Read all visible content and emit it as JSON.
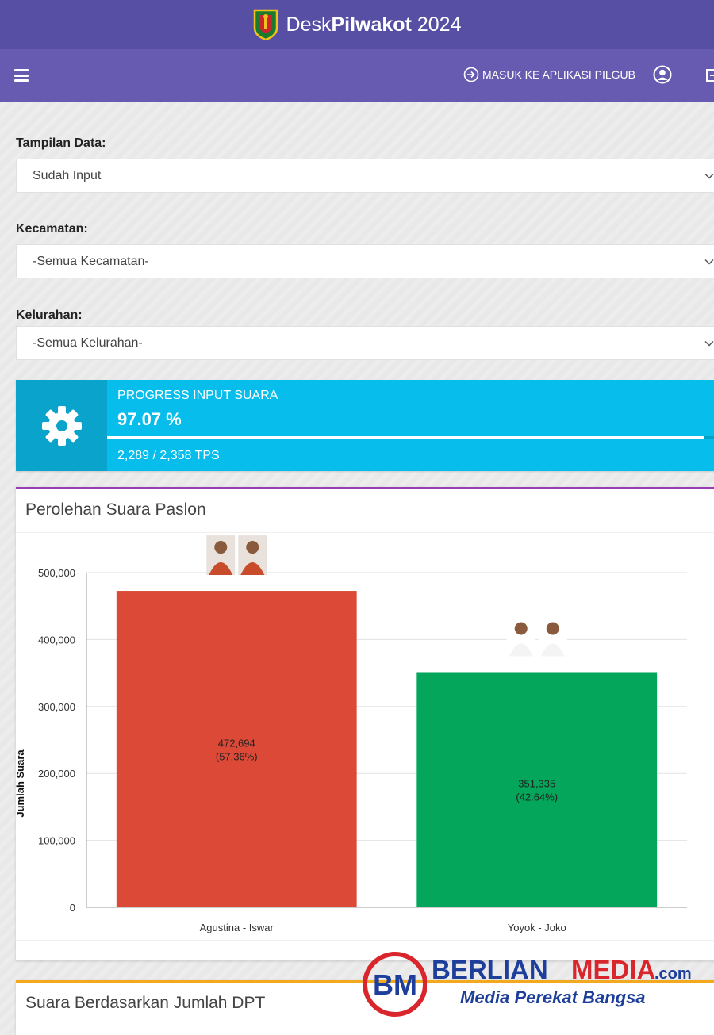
{
  "header": {
    "brand_prefix": "Desk",
    "brand_bold": "Pilwakot",
    "brand_year": "2024"
  },
  "nav": {
    "menu_icon": "hamburger-icon",
    "link_label": "MASUK KE APLIKASI PILGUB",
    "link_icon": "sign-in-icon",
    "user_icon": "user-circle-icon",
    "logout_icon": "logout-icon"
  },
  "filters": {
    "tampilan": {
      "label": "Tampilan Data:",
      "value": "Sudah Input"
    },
    "kecamatan": {
      "label": "Kecamatan:",
      "value": "-Semua Kecamatan-"
    },
    "kelurahan": {
      "label": "Kelurahan:",
      "value": "-Semua Kelurahan-"
    }
  },
  "progress": {
    "title": "PROGRESS INPUT SUARA",
    "percent_text": "97.07 %",
    "percent_value": 97.07,
    "tps_text": "2,289 / 2,358 TPS",
    "icon": "gear-icon",
    "color": "#06bdec"
  },
  "card_votes": {
    "title": "Perolehan Suara Paslon",
    "accent_color": "#9b3db5"
  },
  "card_dpt": {
    "title": "Suara Berdasarkan Jumlah DPT",
    "accent_color": "#f3a91d"
  },
  "chart_data": {
    "type": "bar",
    "categories": [
      "Agustina - Iswar",
      "Yoyok - Joko"
    ],
    "values": [
      472694,
      351335
    ],
    "value_labels": [
      "472,694",
      "351,335"
    ],
    "percent_labels": [
      "(57.36%)",
      "(42.64%)"
    ],
    "colors": [
      "#dc4a37",
      "#03a65a"
    ],
    "ylabel": "Jumlah Suara",
    "ylim": [
      0,
      500000
    ],
    "yticks": [
      0,
      100000,
      200000,
      300000,
      400000,
      500000
    ],
    "ytick_labels": [
      "0",
      "100,000",
      "200,000",
      "300,000",
      "400,000",
      "500,000"
    ],
    "grid": true
  },
  "watermark": {
    "logo_letters": "BM",
    "brand_first": "BERLIAN",
    "brand_second": "MEDIA",
    "domain": ".com",
    "tagline": "Media Perekat Bangsa"
  }
}
